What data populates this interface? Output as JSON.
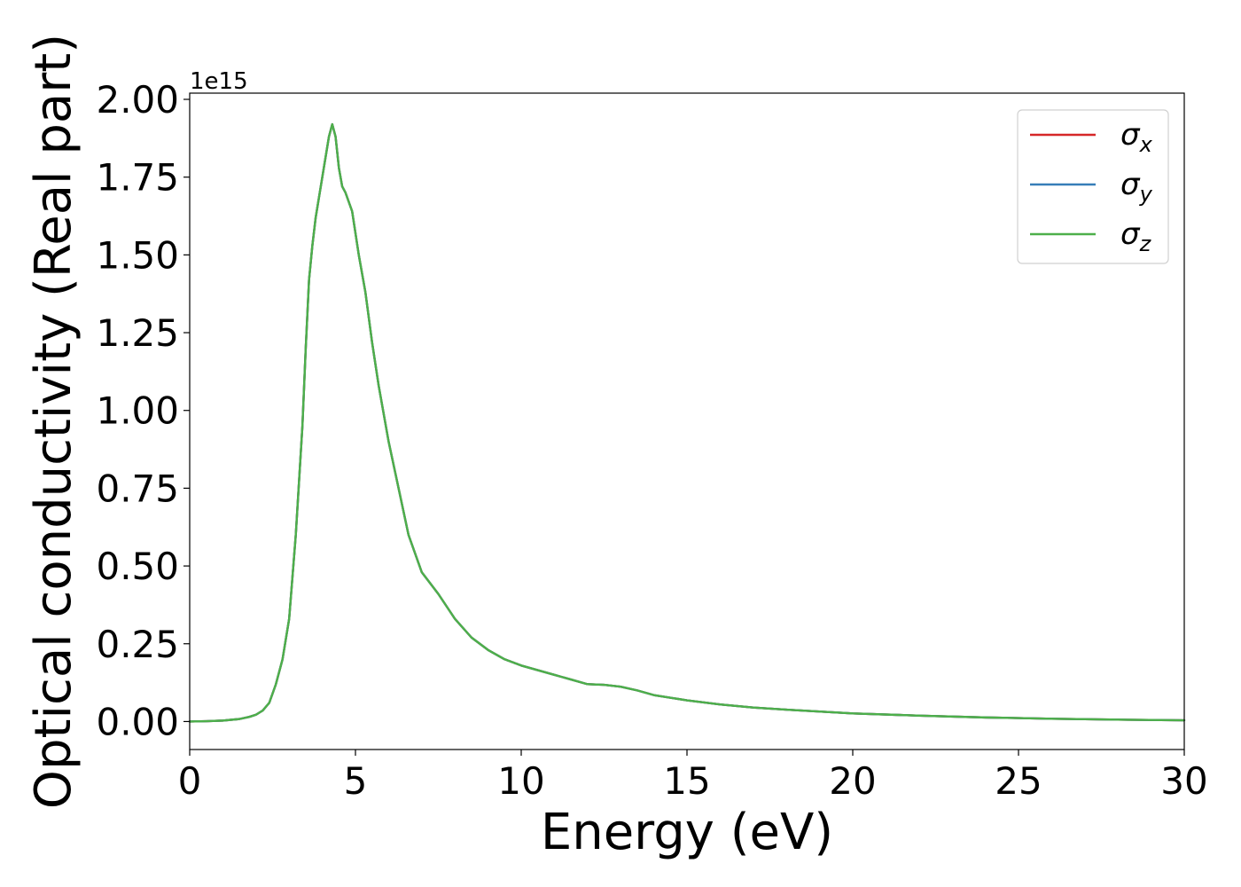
{
  "chart_data": {
    "type": "line",
    "title": "",
    "xlabel": "Energy (eV)",
    "ylabel": "Optical conductivity (Real part)",
    "y_offset_label": "1e15",
    "xlim": [
      0,
      30
    ],
    "ylim": [
      -0.09,
      2.02
    ],
    "y_scale_factor": 1000000000000000.0,
    "x_ticks": [
      0,
      5,
      10,
      15,
      20,
      25,
      30
    ],
    "x_tick_labels": [
      "0",
      "5",
      "10",
      "15",
      "20",
      "25",
      "30"
    ],
    "y_ticks": [
      0.0,
      0.25,
      0.5,
      0.75,
      1.0,
      1.25,
      1.5,
      1.75,
      2.0
    ],
    "y_tick_labels": [
      "0.00",
      "0.25",
      "0.50",
      "0.75",
      "1.00",
      "1.25",
      "1.50",
      "1.75",
      "2.00"
    ],
    "grid": false,
    "legend_position": "top-right",
    "x": [
      0,
      0.5,
      1.0,
      1.5,
      1.8,
      2.0,
      2.2,
      2.4,
      2.6,
      2.8,
      3.0,
      3.2,
      3.4,
      3.5,
      3.6,
      3.7,
      3.8,
      4.0,
      4.2,
      4.3,
      4.4,
      4.5,
      4.6,
      4.7,
      4.9,
      5.1,
      5.3,
      5.5,
      5.7,
      6.0,
      6.3,
      6.6,
      7.0,
      7.5,
      8.0,
      8.5,
      9.0,
      9.5,
      10.0,
      10.5,
      11.0,
      11.5,
      12.0,
      12.5,
      13.0,
      13.5,
      14.0,
      15.0,
      16.0,
      17.0,
      18.0,
      19.0,
      20.0,
      22.0,
      24.0,
      26.0,
      28.0,
      30.0
    ],
    "series": [
      {
        "name": "σ_x",
        "color": "#d62728",
        "values": [
          0.0,
          0.001,
          0.003,
          0.008,
          0.015,
          0.022,
          0.035,
          0.06,
          0.12,
          0.2,
          0.33,
          0.6,
          0.95,
          1.2,
          1.42,
          1.53,
          1.62,
          1.75,
          1.88,
          1.92,
          1.88,
          1.78,
          1.72,
          1.7,
          1.64,
          1.5,
          1.38,
          1.22,
          1.08,
          0.9,
          0.75,
          0.6,
          0.48,
          0.41,
          0.33,
          0.27,
          0.23,
          0.2,
          0.18,
          0.165,
          0.15,
          0.135,
          0.12,
          0.118,
          0.112,
          0.1,
          0.085,
          0.068,
          0.055,
          0.045,
          0.038,
          0.032,
          0.026,
          0.019,
          0.013,
          0.009,
          0.006,
          0.004
        ]
      },
      {
        "name": "σ_y",
        "color": "#377eb8",
        "values": [
          0.0,
          0.001,
          0.003,
          0.008,
          0.015,
          0.022,
          0.035,
          0.06,
          0.12,
          0.2,
          0.33,
          0.6,
          0.95,
          1.2,
          1.42,
          1.53,
          1.62,
          1.75,
          1.88,
          1.92,
          1.88,
          1.78,
          1.72,
          1.7,
          1.64,
          1.5,
          1.38,
          1.22,
          1.08,
          0.9,
          0.75,
          0.6,
          0.48,
          0.41,
          0.33,
          0.27,
          0.23,
          0.2,
          0.18,
          0.165,
          0.15,
          0.135,
          0.12,
          0.118,
          0.112,
          0.1,
          0.085,
          0.068,
          0.055,
          0.045,
          0.038,
          0.032,
          0.026,
          0.019,
          0.013,
          0.009,
          0.006,
          0.004
        ]
      },
      {
        "name": "σ_z",
        "color": "#4daf4a",
        "values": [
          0.0,
          0.001,
          0.003,
          0.008,
          0.015,
          0.022,
          0.035,
          0.06,
          0.12,
          0.2,
          0.33,
          0.6,
          0.95,
          1.2,
          1.42,
          1.53,
          1.62,
          1.75,
          1.88,
          1.92,
          1.88,
          1.78,
          1.72,
          1.7,
          1.64,
          1.5,
          1.38,
          1.22,
          1.08,
          0.9,
          0.75,
          0.6,
          0.48,
          0.41,
          0.33,
          0.27,
          0.23,
          0.2,
          0.18,
          0.165,
          0.15,
          0.135,
          0.12,
          0.118,
          0.112,
          0.1,
          0.085,
          0.068,
          0.055,
          0.045,
          0.038,
          0.032,
          0.026,
          0.019,
          0.013,
          0.009,
          0.006,
          0.004
        ]
      }
    ],
    "legend": [
      {
        "base": "σ",
        "sub": "x"
      },
      {
        "base": "σ",
        "sub": "y"
      },
      {
        "base": "σ",
        "sub": "z"
      }
    ]
  }
}
